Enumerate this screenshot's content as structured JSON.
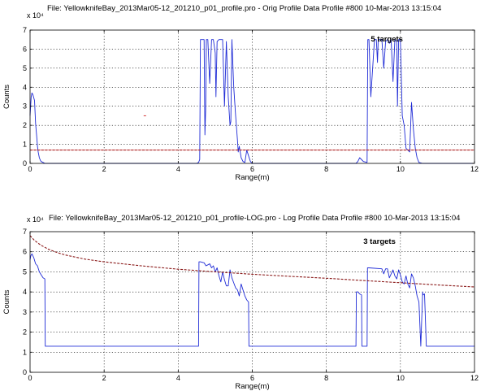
{
  "chart_data": [
    {
      "type": "line",
      "title": "File: YellowknifeBay_2013Mar05-12_201210_p01_profile.pro - Orig Profile Data   Profile #800   10-Mar-2013 13:15:04",
      "xlabel": "Range(m)",
      "ylabel": "Counts",
      "exponent_label": "x 10⁴",
      "xlim": [
        0,
        12
      ],
      "ylim": [
        0,
        7
      ],
      "xticks": [
        "0",
        "2",
        "4",
        "6",
        "8",
        "10",
        "12"
      ],
      "yticks": [
        "0",
        "1",
        "2",
        "3",
        "4",
        "5",
        "6",
        "7"
      ],
      "grid": true,
      "annotation": "5 targets",
      "annotation_pos": [
        9.2,
        6.4
      ],
      "series": [
        {
          "x": [
            0,
            0.03,
            0.05,
            0.08,
            0.12,
            0.15,
            0.18,
            0.2,
            0.22,
            0.25,
            0.28,
            0.3,
            0.35,
            0.4,
            0.5,
            1,
            2,
            3,
            4,
            4.5,
            4.55,
            4.58,
            4.6,
            4.7,
            4.72,
            4.74,
            4.76,
            4.8,
            4.85,
            4.9,
            4.95,
            5.0,
            5.02,
            5.05,
            5.1,
            5.15,
            5.2,
            5.25,
            5.3,
            5.35,
            5.4,
            5.42,
            5.45,
            5.5,
            5.55,
            5.6,
            5.62,
            5.65,
            5.7,
            5.75,
            5.8,
            5.85,
            5.9,
            5.95,
            6.0,
            6.2,
            7,
            8,
            8.8,
            8.85,
            8.9,
            9.0,
            9.1,
            9.12,
            9.15,
            9.2,
            9.3,
            9.35,
            9.38,
            9.4,
            9.5,
            9.55,
            9.6,
            9.65,
            9.7,
            9.75,
            9.8,
            9.85,
            9.9,
            9.92,
            9.95,
            10.0,
            10.05,
            10.1,
            10.15,
            10.2,
            10.25,
            10.3,
            10.35,
            10.4,
            10.45,
            10.5,
            10.6,
            10.8,
            12
          ],
          "y": [
            2.5,
            3.5,
            3.7,
            3.6,
            3.3,
            2.1,
            1.4,
            0.9,
            0.6,
            0.3,
            0.15,
            0.1,
            0.05,
            0.0,
            0.0,
            0.0,
            0.0,
            0.0,
            0.0,
            0.0,
            0.05,
            0.2,
            6.5,
            6.5,
            1.5,
            2.8,
            6.5,
            6.5,
            4.2,
            6.5,
            6.5,
            5.8,
            3.5,
            6.4,
            6.5,
            6.5,
            6.5,
            3.0,
            6.4,
            3.5,
            2.0,
            2.2,
            6.5,
            4.0,
            2.5,
            1.2,
            0.6,
            0.9,
            0.3,
            0.1,
            0.05,
            0.7,
            0.4,
            0.1,
            0.0,
            0.0,
            0.0,
            0.0,
            0.0,
            0.1,
            0.3,
            0.1,
            0.05,
            6.5,
            6.5,
            3.5,
            6.5,
            6.5,
            5.3,
            6.5,
            6.5,
            5.0,
            6.4,
            6.5,
            6.3,
            6.5,
            4.3,
            6.5,
            6.4,
            3.0,
            6.5,
            6.5,
            2.5,
            2.0,
            0.8,
            0.7,
            0.6,
            3.2,
            1.8,
            0.8,
            0.3,
            0.05,
            0.0,
            0.0,
            0.0
          ]
        },
        {
          "x": [
            0,
            12
          ],
          "y": [
            0.7,
            0.7
          ],
          "style": "threshold"
        }
      ],
      "marker": {
        "x": 3.1,
        "y": 2.5
      }
    },
    {
      "type": "line",
      "title": "File: YellowknifeBay_2013Mar05-12_201210_p01_profile-LOG.pro - Log Profile Data   Profile #800   10-Mar-2013 13:15:04",
      "xlabel": "Range(m)",
      "ylabel": "Counts",
      "exponent_label": "x 10⁴",
      "xlim": [
        0,
        12
      ],
      "ylim": [
        0,
        7
      ],
      "xticks": [
        "0",
        "2",
        "4",
        "6",
        "8",
        "10",
        "12"
      ],
      "yticks": [
        "0",
        "1",
        "2",
        "3",
        "4",
        "5",
        "6",
        "7"
      ],
      "grid": true,
      "annotation": "3 targets",
      "annotation_pos": [
        9.0,
        6.4
      ],
      "series": [
        {
          "x": [
            0,
            0.02,
            0.05,
            0.1,
            0.15,
            0.2,
            0.25,
            0.3,
            0.35,
            0.4,
            0.41,
            4.55,
            4.56,
            4.6,
            4.7,
            4.75,
            4.8,
            4.85,
            4.9,
            4.95,
            5.0,
            5.05,
            5.1,
            5.15,
            5.2,
            5.25,
            5.3,
            5.35,
            5.4,
            5.45,
            5.5,
            5.55,
            5.6,
            5.65,
            5.7,
            5.75,
            5.8,
            5.85,
            5.9,
            5.91,
            8.8,
            8.81,
            8.85,
            8.9,
            8.95,
            8.96,
            9.1,
            9.11,
            9.15,
            9.5,
            9.55,
            9.6,
            9.65,
            9.7,
            9.8,
            9.85,
            9.9,
            9.95,
            10.0,
            10.05,
            10.1,
            10.15,
            10.2,
            10.25,
            10.3,
            10.35,
            10.4,
            10.45,
            10.5,
            10.55,
            10.6,
            10.61,
            10.65,
            10.7,
            10.72,
            10.73,
            12
          ],
          "y": [
            5.6,
            5.8,
            5.9,
            5.7,
            5.4,
            5.3,
            5.0,
            4.85,
            4.7,
            4.65,
            1.3,
            1.3,
            5.5,
            5.5,
            5.45,
            5.3,
            5.35,
            5.4,
            5.2,
            5.3,
            5.0,
            5.2,
            4.8,
            4.5,
            5.0,
            4.6,
            4.3,
            4.3,
            5.1,
            4.7,
            4.45,
            4.2,
            4.1,
            3.8,
            4.4,
            4.1,
            3.8,
            3.6,
            3.5,
            1.3,
            1.3,
            4.0,
            4.0,
            3.9,
            3.85,
            1.3,
            1.3,
            5.2,
            5.2,
            5.15,
            4.9,
            5.15,
            5.15,
            4.7,
            5.1,
            4.8,
            4.65,
            5.1,
            4.85,
            4.5,
            4.4,
            4.8,
            4.4,
            4.2,
            4.9,
            4.7,
            4.3,
            3.8,
            3.5,
            1.3,
            4.0,
            3.85,
            3.9,
            1.3,
            1.3,
            1.3,
            1.3
          ]
        },
        {
          "x": [
            0,
            0.05,
            0.1,
            0.2,
            0.3,
            0.5,
            0.75,
            1,
            1.5,
            2,
            3,
            4,
            5,
            6,
            7,
            8,
            9,
            10,
            11,
            12
          ],
          "y": [
            6.8,
            6.7,
            6.6,
            6.45,
            6.32,
            6.12,
            5.95,
            5.82,
            5.63,
            5.5,
            5.3,
            5.13,
            5.0,
            4.88,
            4.78,
            4.68,
            4.57,
            4.46,
            4.35,
            4.25
          ],
          "style": "threshold"
        }
      ]
    }
  ]
}
